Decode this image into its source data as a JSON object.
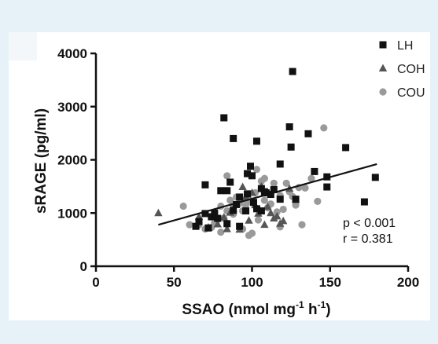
{
  "chart_data": {
    "type": "scatter",
    "xlabel": "SSAO (nmol mg",
    "xlabel_sup1": "-1",
    "xlabel_mid": " h",
    "xlabel_sup2": "-1",
    "xlabel_end": ")",
    "ylabel": "sRAGE (pg/ml)",
    "xlim": [
      0,
      200
    ],
    "ylim": [
      0,
      4000
    ],
    "xticks": [
      0,
      50,
      100,
      150,
      200
    ],
    "yticks": [
      0,
      1000,
      2000,
      3000,
      4000
    ],
    "legend_position": "top-right",
    "annotation": {
      "p": "p < 0.001",
      "r": "r = 0.381"
    },
    "regression": {
      "x": [
        40,
        180
      ],
      "y": [
        780,
        1920
      ]
    },
    "series": [
      {
        "name": "LH",
        "marker": "square",
        "color": "#111111",
        "points": [
          [
            82,
            2790
          ],
          [
            88,
            2400
          ],
          [
            103,
            2350
          ],
          [
            97,
            1740
          ],
          [
            100,
            1700
          ],
          [
            99,
            1880
          ],
          [
            86,
            1580
          ],
          [
            70,
            1530
          ],
          [
            80,
            1420
          ],
          [
            84,
            1420
          ],
          [
            97,
            1360
          ],
          [
            106,
            1460
          ],
          [
            109,
            1380
          ],
          [
            112,
            1350
          ],
          [
            118,
            1920
          ],
          [
            124,
            2620
          ],
          [
            125,
            2240
          ],
          [
            126,
            3660
          ],
          [
            136,
            2490
          ],
          [
            140,
            1780
          ],
          [
            148,
            1680
          ],
          [
            148,
            1490
          ],
          [
            160,
            2230
          ],
          [
            172,
            1210
          ],
          [
            179,
            1670
          ],
          [
            128,
            1260
          ],
          [
            118,
            1260
          ],
          [
            103,
            1080
          ],
          [
            106,
            1040
          ],
          [
            96,
            1040
          ],
          [
            90,
            1160
          ],
          [
            88,
            1050
          ],
          [
            78,
            900
          ],
          [
            74,
            930
          ],
          [
            70,
            990
          ],
          [
            66,
            840
          ],
          [
            64,
            750
          ],
          [
            72,
            720
          ],
          [
            84,
            800
          ],
          [
            92,
            750
          ],
          [
            101,
            1200
          ],
          [
            108,
            1400
          ],
          [
            92,
            1300
          ],
          [
            114,
            1440
          ],
          [
            76,
            1000
          ]
        ]
      },
      {
        "name": "COH",
        "marker": "triangle",
        "color": "#555555",
        "points": [
          [
            40,
            1000
          ],
          [
            66,
            930
          ],
          [
            72,
            730
          ],
          [
            78,
            790
          ],
          [
            82,
            920
          ],
          [
            88,
            1080
          ],
          [
            94,
            1490
          ],
          [
            96,
            1300
          ],
          [
            100,
            1380
          ],
          [
            106,
            1500
          ],
          [
            110,
            1120
          ],
          [
            114,
            900
          ],
          [
            118,
            800
          ],
          [
            120,
            850
          ],
          [
            124,
            1460
          ],
          [
            128,
            1250
          ],
          [
            104,
            990
          ],
          [
            98,
            860
          ],
          [
            92,
            690
          ],
          [
            84,
            700
          ],
          [
            86,
            1010
          ],
          [
            108,
            780
          ],
          [
            112,
            1000
          ],
          [
            116,
            940
          ],
          [
            102,
            1150
          ]
        ]
      },
      {
        "name": "COU",
        "marker": "circle",
        "color": "#9a9a9a",
        "points": [
          [
            56,
            1130
          ],
          [
            60,
            780
          ],
          [
            66,
            780
          ],
          [
            70,
            700
          ],
          [
            74,
            730
          ],
          [
            76,
            820
          ],
          [
            78,
            880
          ],
          [
            80,
            640
          ],
          [
            82,
            900
          ],
          [
            84,
            1040
          ],
          [
            86,
            1240
          ],
          [
            88,
            1100
          ],
          [
            90,
            1300
          ],
          [
            92,
            1180
          ],
          [
            94,
            1040
          ],
          [
            96,
            1150
          ],
          [
            98,
            1260
          ],
          [
            100,
            1200
          ],
          [
            102,
            1380
          ],
          [
            103,
            1820
          ],
          [
            104,
            870
          ],
          [
            106,
            1600
          ],
          [
            108,
            1240
          ],
          [
            110,
            1100
          ],
          [
            112,
            1170
          ],
          [
            114,
            1560
          ],
          [
            116,
            1020
          ],
          [
            118,
            740
          ],
          [
            120,
            1070
          ],
          [
            122,
            1560
          ],
          [
            124,
            1400
          ],
          [
            126,
            1310
          ],
          [
            128,
            1150
          ],
          [
            130,
            1480
          ],
          [
            134,
            1470
          ],
          [
            138,
            1650
          ],
          [
            142,
            1220
          ],
          [
            146,
            2600
          ],
          [
            132,
            780
          ],
          [
            98,
            580
          ],
          [
            100,
            620
          ],
          [
            94,
            700
          ],
          [
            88,
            980
          ],
          [
            80,
            1130
          ],
          [
            84,
            1700
          ],
          [
            108,
            1650
          ],
          [
            118,
            1330
          ]
        ]
      }
    ]
  }
}
